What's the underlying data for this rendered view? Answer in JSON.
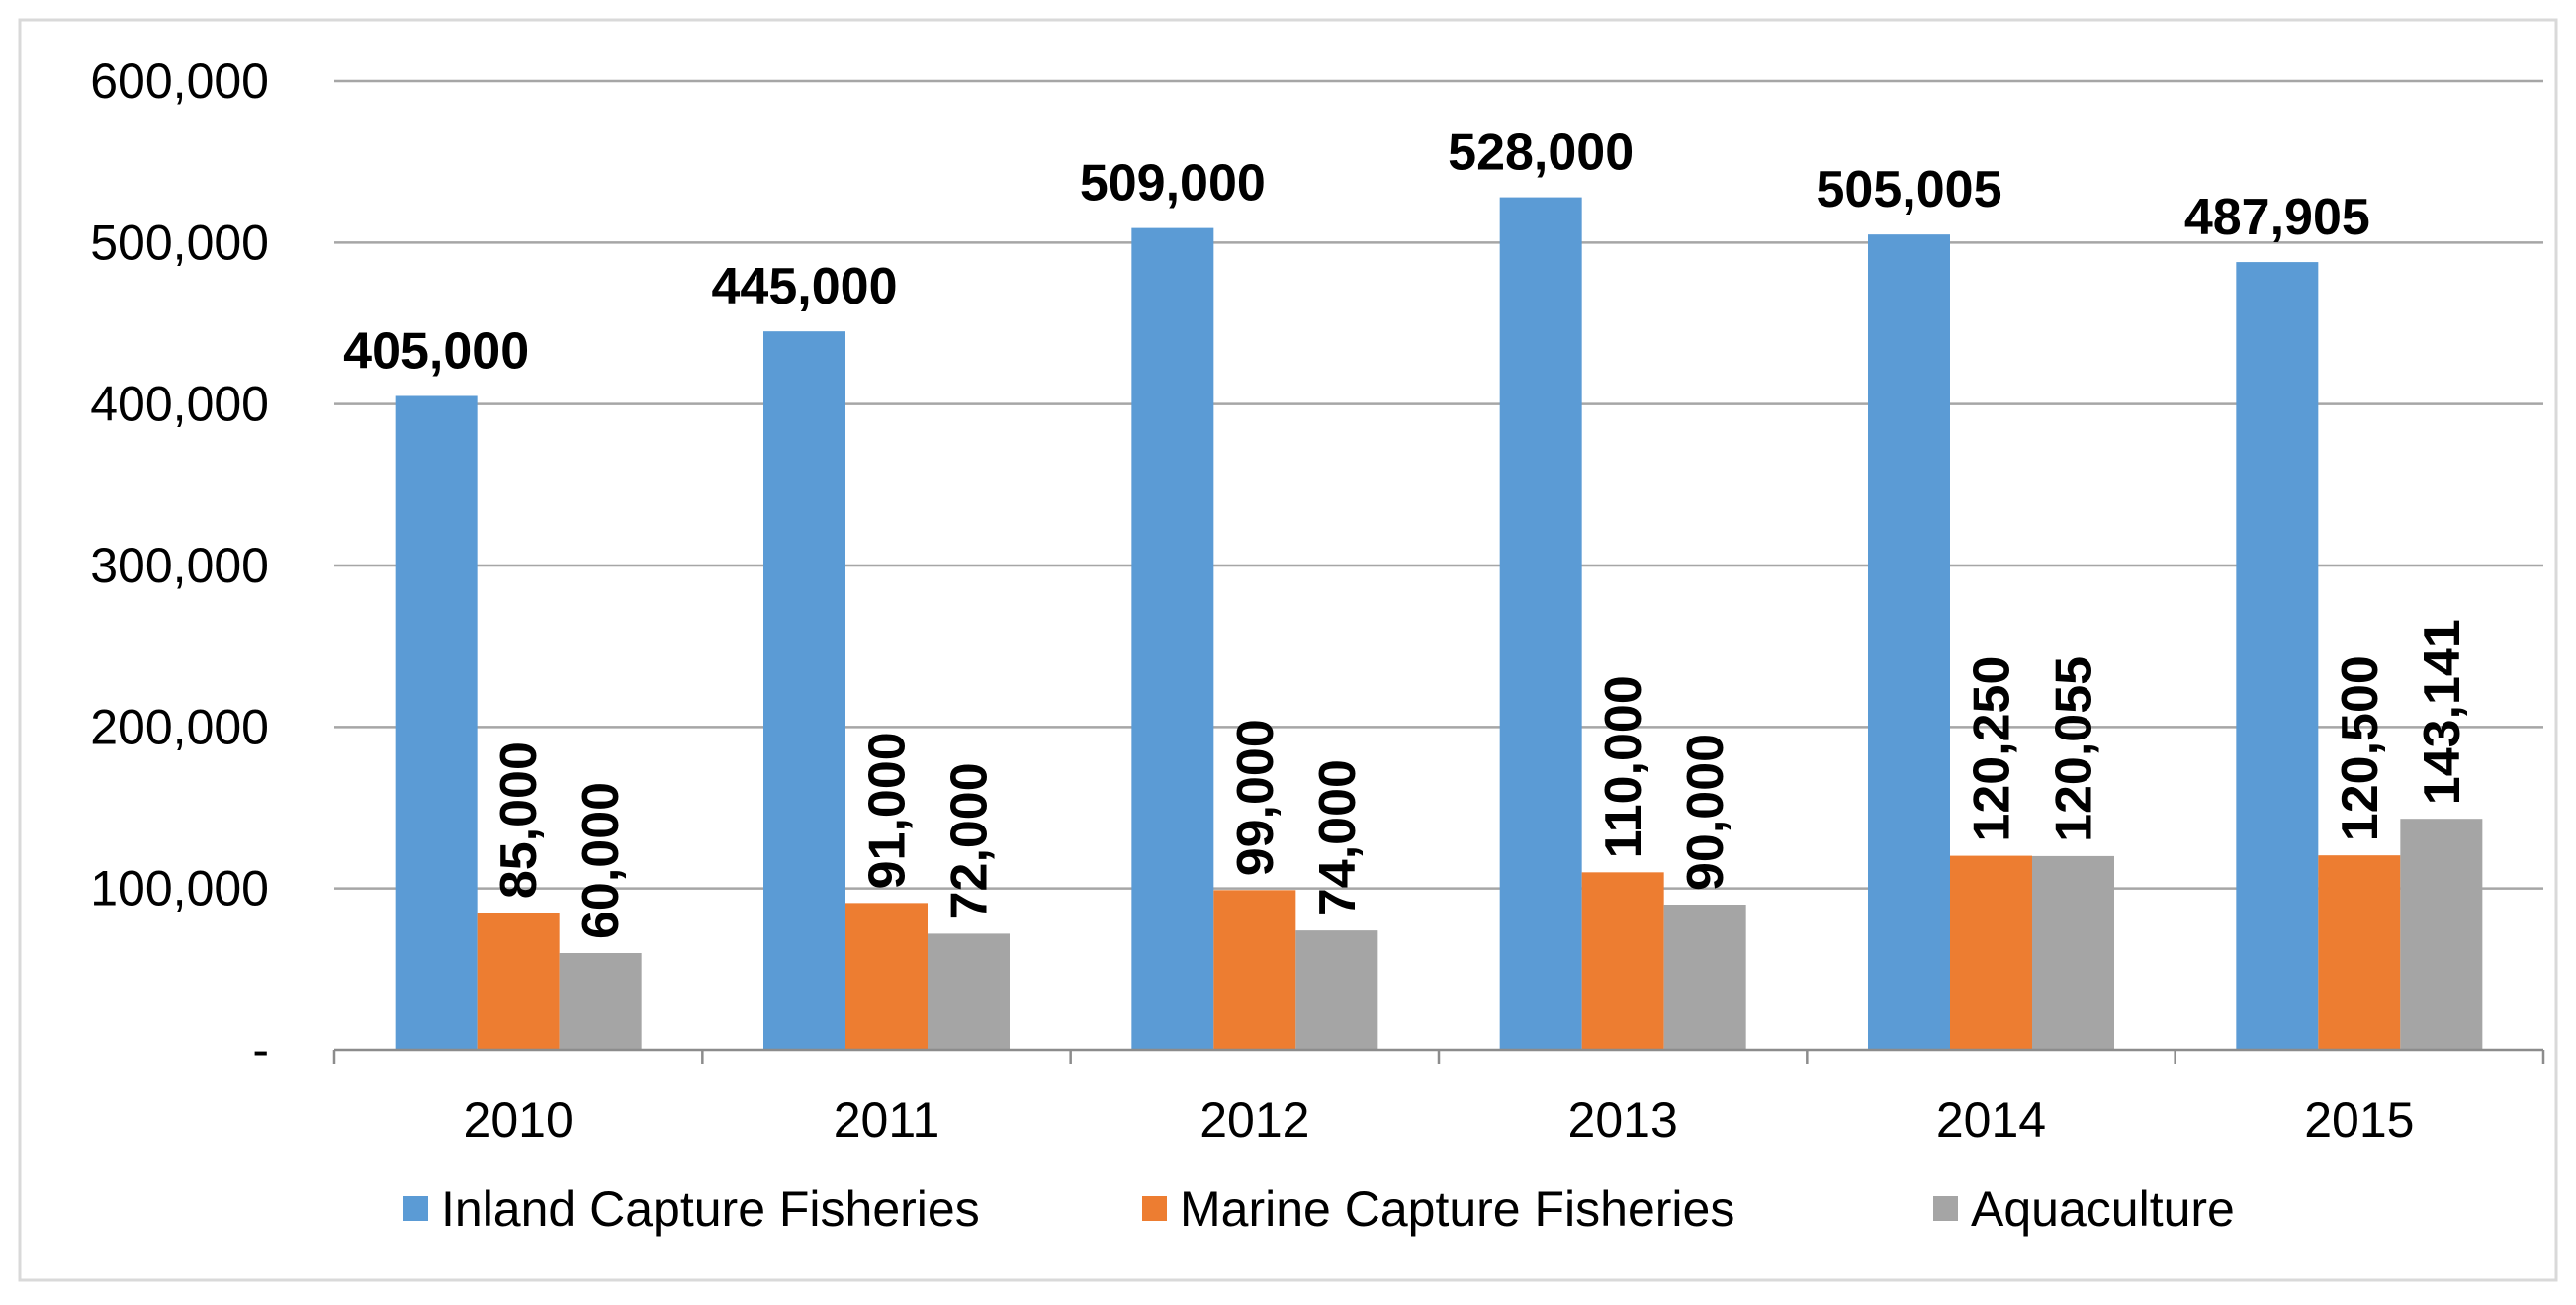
{
  "chart_data": {
    "type": "bar",
    "title": "",
    "xlabel": "",
    "ylabel": "",
    "categories": [
      "2010",
      "2011",
      "2012",
      "2013",
      "2014",
      "2015"
    ],
    "series": [
      {
        "name": "Inland Capture Fisheries",
        "color": "#5b9bd5",
        "values": [
          405000,
          445000,
          509000,
          528000,
          505005,
          487905
        ],
        "labels": [
          "405,000",
          "445,000",
          "509,000",
          "528,000",
          "505,005",
          "487,905"
        ]
      },
      {
        "name": "Marine Capture Fisheries",
        "color": "#ed7d31",
        "values": [
          85000,
          91000,
          99000,
          110000,
          120250,
          120500
        ],
        "labels": [
          "85,000",
          "91,000",
          "99,000",
          "110,000",
          "120,250",
          "120,500"
        ]
      },
      {
        "name": "Aquaculture",
        "color": "#a5a5a5",
        "values": [
          60000,
          72000,
          74000,
          90000,
          120055,
          143141
        ],
        "labels": [
          "60,000",
          "72,000",
          "74,000",
          "90,000",
          "120,055",
          "143,141"
        ]
      }
    ],
    "ylim": [
      0,
      600000
    ],
    "yticks": [
      0,
      100000,
      200000,
      300000,
      400000,
      500000,
      600000
    ],
    "ytick_labels": [
      "-",
      "100,000",
      "200,000",
      "300,000",
      "400,000",
      "500,000",
      "600,000"
    ],
    "grid": true,
    "legend_position": "bottom"
  }
}
